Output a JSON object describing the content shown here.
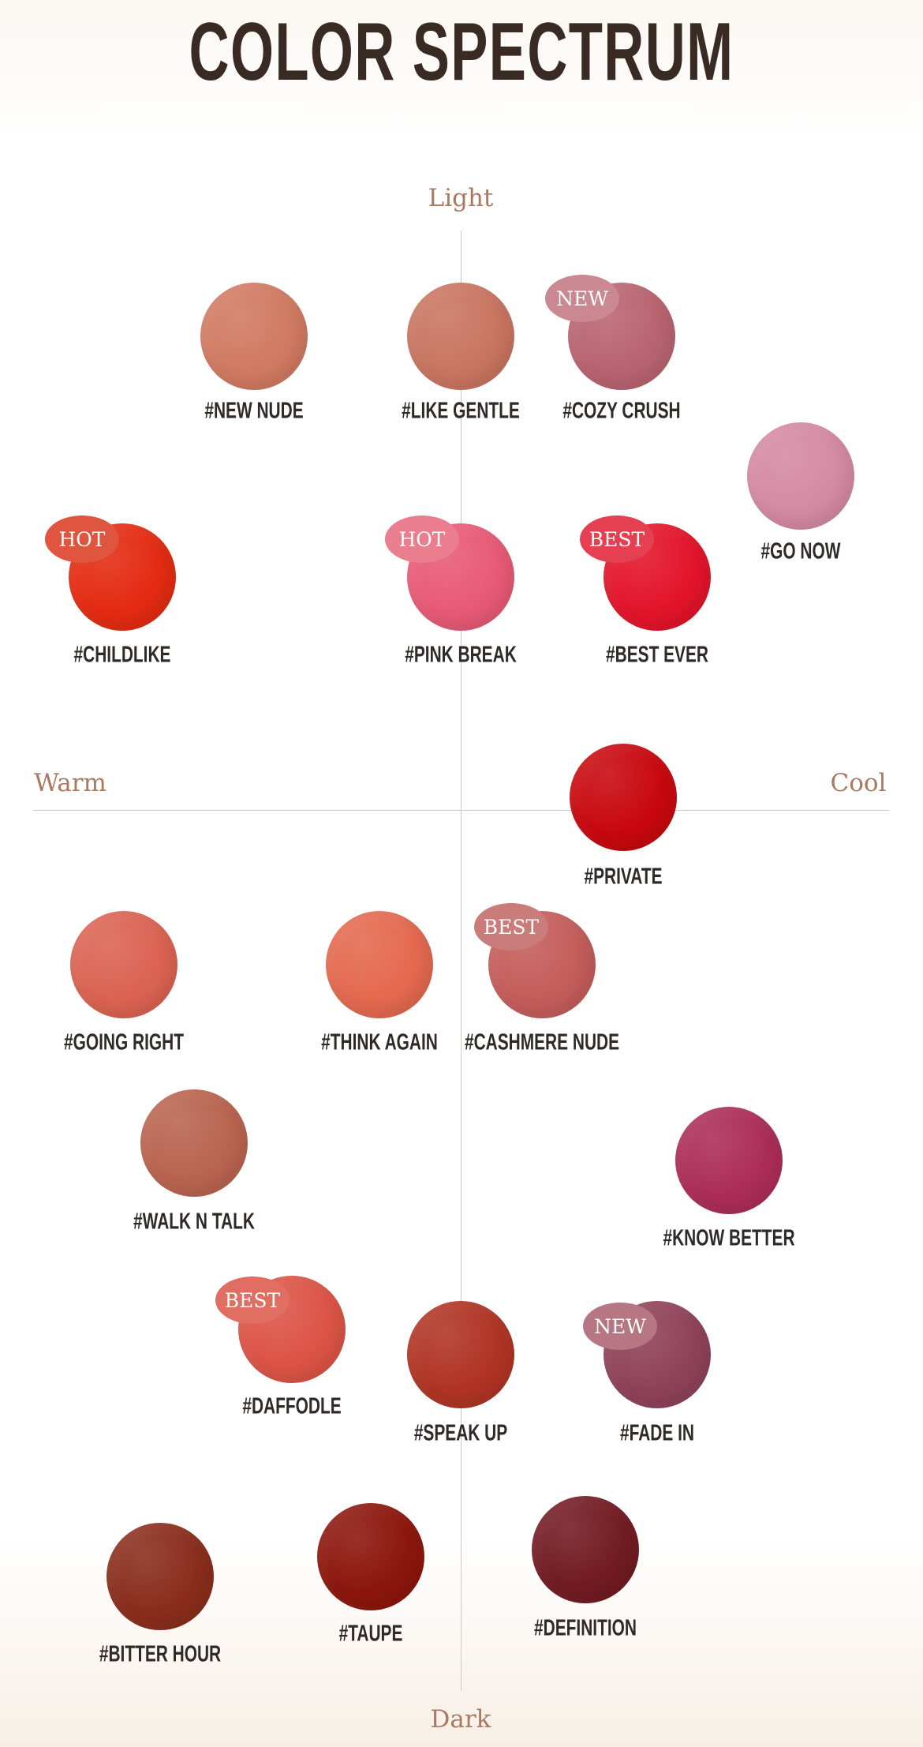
{
  "title": "COLOR SPECTRUM",
  "axes": {
    "top": "Light",
    "bottom": "Dark",
    "left": "Warm",
    "right": "Cool"
  },
  "shades": [
    {
      "name": "#NEW NUDE",
      "color": "#d17a62",
      "badge": null
    },
    {
      "name": "#LIKE GENTLE",
      "color": "#c97560",
      "badge": null
    },
    {
      "name": "#COZY CRUSH",
      "color": "#b96470",
      "badge": "NEW",
      "badge_color": "#c98892"
    },
    {
      "name": "#GO NOW",
      "color": "#d48aa3",
      "badge": null
    },
    {
      "name": "#CHILDLIKE",
      "color": "#e42b12",
      "badge": "HOT",
      "badge_color": "#e0553f"
    },
    {
      "name": "#PINK BREAK",
      "color": "#e85a75",
      "badge": "HOT",
      "badge_color": "#ea7d8e"
    },
    {
      "name": "#BEST EVER",
      "color": "#e3142a",
      "badge": "BEST",
      "badge_color": "#e44052"
    },
    {
      "name": "#PRIVATE",
      "color": "#c8080e",
      "badge": null
    },
    {
      "name": "#GOING RIGHT",
      "color": "#db6352",
      "badge": null
    },
    {
      "name": "#THINK AGAIN",
      "color": "#e4694f",
      "badge": null
    },
    {
      "name": "#CASHMERE NUDE",
      "color": "#c45d5b",
      "badge": "BEST",
      "badge_color": "#c97c7a"
    },
    {
      "name": "#WALK N TALK",
      "color": "#b9644f",
      "badge": null
    },
    {
      "name": "#KNOW BETTER",
      "color": "#ac2d58",
      "badge": null
    },
    {
      "name": "#DAFFODLE",
      "color": "#dc5446",
      "badge": "BEST",
      "badge_color": "#e06e62"
    },
    {
      "name": "#SPEAK UP",
      "color": "#b03424",
      "badge": null
    },
    {
      "name": "#FADE IN",
      "color": "#8f4259",
      "badge": "NEW",
      "badge_color": "#b67683"
    },
    {
      "name": "#BITTER HOUR",
      "color": "#8a2d1c",
      "badge": null
    },
    {
      "name": "#TAUPE",
      "color": "#8c160c",
      "badge": null
    },
    {
      "name": "#DEFINITION",
      "color": "#721b22",
      "badge": null
    }
  ]
}
